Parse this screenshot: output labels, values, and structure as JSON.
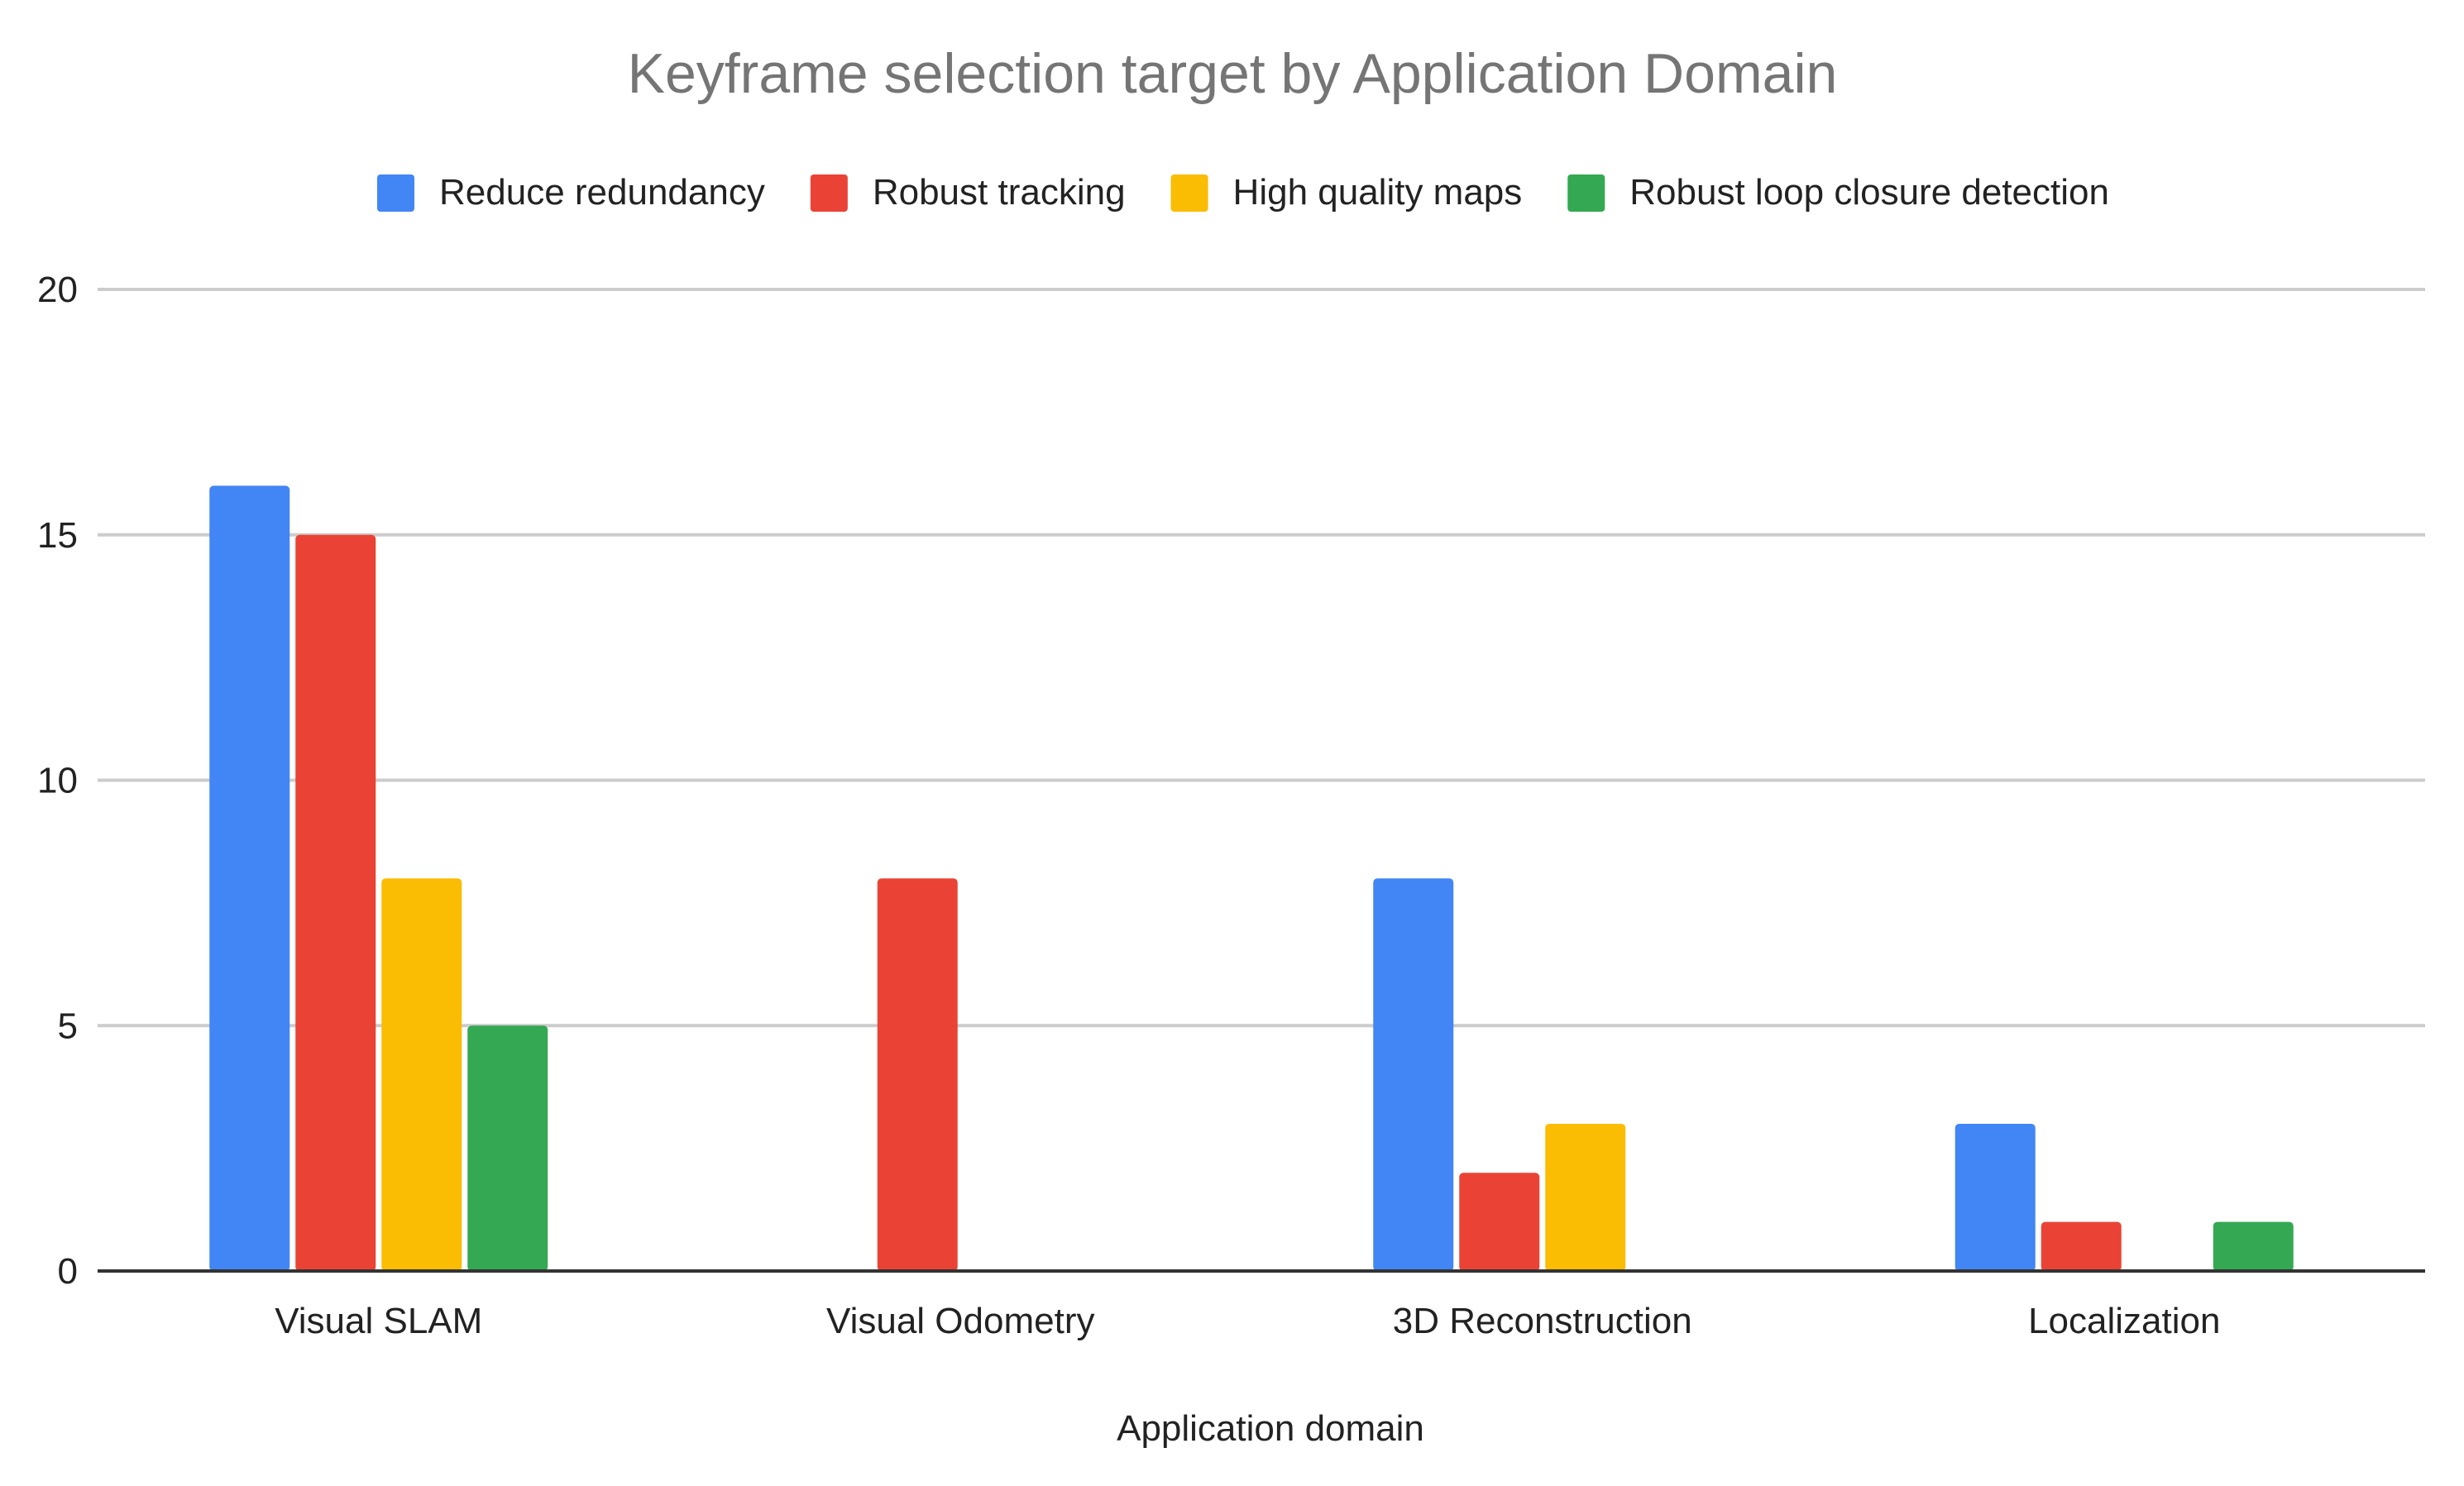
{
  "chart_data": {
    "type": "bar",
    "title": "Keyframe selection target by Application Domain",
    "xlabel": "Application domain",
    "ylabel": "",
    "categories": [
      "Visual SLAM",
      "Visual Odometry",
      "3D Reconstruction",
      "Localization"
    ],
    "series": [
      {
        "name": "Reduce redundancy",
        "color": "#4285F4",
        "values": [
          16,
          0,
          8,
          3
        ]
      },
      {
        "name": "Robust tracking",
        "color": "#EA4335",
        "values": [
          15,
          8,
          2,
          1
        ]
      },
      {
        "name": "High quality maps",
        "color": "#FBBC04",
        "values": [
          8,
          0,
          3,
          0
        ]
      },
      {
        "name": "Robust loop closure detection",
        "color": "#34A853",
        "values": [
          5,
          0,
          0,
          1
        ]
      }
    ],
    "ylim": [
      0,
      20
    ],
    "yticks": [
      0,
      5,
      10,
      15,
      20
    ],
    "grid": true,
    "legend_position": "top"
  }
}
